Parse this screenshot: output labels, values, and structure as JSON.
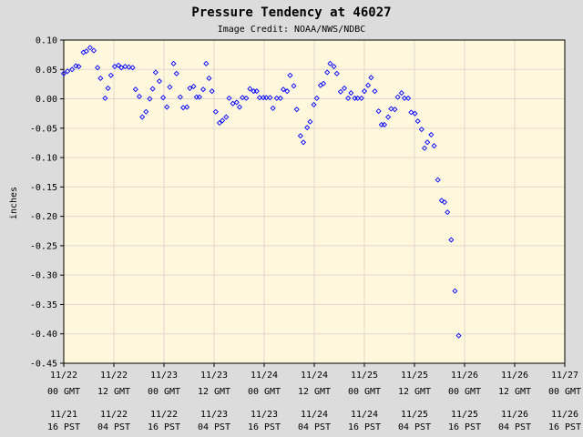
{
  "chart_data": {
    "type": "scatter",
    "title": "Pressure Tendency at 46027",
    "subtitle": "Image Credit: NOAA/NWS/NDBC",
    "ylabel": "inches",
    "xlabel": "",
    "ylim": [
      -0.45,
      0.1
    ],
    "y_ticks": [
      0.1,
      0.05,
      0.0,
      -0.05,
      -0.1,
      -0.15,
      -0.2,
      -0.25,
      -0.3,
      -0.35,
      -0.4,
      -0.45
    ],
    "y_tick_labels": [
      "0.10",
      "0.05",
      "0.00",
      "-0.05",
      "-0.10",
      "-0.15",
      "-0.20",
      "-0.25",
      "-0.30",
      "-0.35",
      "-0.40",
      "-0.45"
    ],
    "x_range_hours": [
      0,
      120
    ],
    "x_ticks": [
      {
        "hour": 0,
        "gmt_date": "11/22",
        "gmt_time": "00 GMT",
        "pst_date": "11/21",
        "pst_time": "16 PST"
      },
      {
        "hour": 12,
        "gmt_date": "11/22",
        "gmt_time": "12 GMT",
        "pst_date": "11/22",
        "pst_time": "04 PST"
      },
      {
        "hour": 24,
        "gmt_date": "11/23",
        "gmt_time": "00 GMT",
        "pst_date": "11/22",
        "pst_time": "16 PST"
      },
      {
        "hour": 36,
        "gmt_date": "11/23",
        "gmt_time": "12 GMT",
        "pst_date": "11/23",
        "pst_time": "04 PST"
      },
      {
        "hour": 48,
        "gmt_date": "11/24",
        "gmt_time": "00 GMT",
        "pst_date": "11/23",
        "pst_time": "16 PST"
      },
      {
        "hour": 60,
        "gmt_date": "11/24",
        "gmt_time": "12 GMT",
        "pst_date": "11/24",
        "pst_time": "04 PST"
      },
      {
        "hour": 72,
        "gmt_date": "11/25",
        "gmt_time": "00 GMT",
        "pst_date": "11/24",
        "pst_time": "16 PST"
      },
      {
        "hour": 84,
        "gmt_date": "11/25",
        "gmt_time": "12 GMT",
        "pst_date": "11/25",
        "pst_time": "04 PST"
      },
      {
        "hour": 96,
        "gmt_date": "11/26",
        "gmt_time": "00 GMT",
        "pst_date": "11/25",
        "pst_time": "16 PST"
      },
      {
        "hour": 108,
        "gmt_date": "11/26",
        "gmt_time": "12 GMT",
        "pst_date": "11/26",
        "pst_time": "04 PST"
      },
      {
        "hour": 120,
        "gmt_date": "11/27",
        "gmt_time": "00 GMT",
        "pst_date": "11/26",
        "pst_time": "16 PST"
      }
    ],
    "grid": true,
    "colors": {
      "background": "#dcdcdc",
      "plot": "#fff8dc",
      "grid": "#e0d8d0",
      "marker": "#0000ff"
    },
    "points": [
      [
        0.0,
        0.043
      ],
      [
        0.9,
        0.047
      ],
      [
        2.0,
        0.05
      ],
      [
        2.9,
        0.056
      ],
      [
        3.6,
        0.055
      ],
      [
        4.7,
        0.079
      ],
      [
        5.4,
        0.081
      ],
      [
        6.3,
        0.087
      ],
      [
        7.2,
        0.082
      ],
      [
        8.1,
        0.053
      ],
      [
        8.8,
        0.035
      ],
      [
        9.9,
        0.001
      ],
      [
        10.6,
        0.018
      ],
      [
        11.3,
        0.04
      ],
      [
        12.2,
        0.055
      ],
      [
        13.1,
        0.057
      ],
      [
        13.8,
        0.053
      ],
      [
        14.7,
        0.055
      ],
      [
        15.6,
        0.054
      ],
      [
        16.5,
        0.053
      ],
      [
        17.2,
        0.016
      ],
      [
        18.1,
        0.004
      ],
      [
        18.8,
        -0.031
      ],
      [
        19.7,
        -0.022
      ],
      [
        20.6,
        0.0
      ],
      [
        21.3,
        0.017
      ],
      [
        22.0,
        0.045
      ],
      [
        22.9,
        0.03
      ],
      [
        23.8,
        0.002
      ],
      [
        24.7,
        -0.014
      ],
      [
        25.4,
        0.02
      ],
      [
        26.3,
        0.06
      ],
      [
        27.0,
        0.043
      ],
      [
        27.9,
        0.003
      ],
      [
        28.6,
        -0.015
      ],
      [
        29.5,
        -0.014
      ],
      [
        30.2,
        0.018
      ],
      [
        31.1,
        0.021
      ],
      [
        31.8,
        0.003
      ],
      [
        32.5,
        0.003
      ],
      [
        33.4,
        0.016
      ],
      [
        34.1,
        0.06
      ],
      [
        34.8,
        0.035
      ],
      [
        35.5,
        0.013
      ],
      [
        36.4,
        -0.022
      ],
      [
        37.3,
        -0.041
      ],
      [
        38.0,
        -0.037
      ],
      [
        38.9,
        -0.031
      ],
      [
        39.6,
        0.001
      ],
      [
        40.5,
        -0.008
      ],
      [
        41.4,
        -0.006
      ],
      [
        42.1,
        -0.014
      ],
      [
        42.8,
        0.002
      ],
      [
        43.7,
        0.001
      ],
      [
        44.6,
        0.017
      ],
      [
        45.5,
        0.013
      ],
      [
        46.2,
        0.013
      ],
      [
        46.9,
        0.002
      ],
      [
        47.8,
        0.002
      ],
      [
        48.5,
        0.002
      ],
      [
        49.4,
        0.002
      ],
      [
        50.1,
        -0.016
      ],
      [
        51.0,
        0.001
      ],
      [
        51.9,
        0.001
      ],
      [
        52.6,
        0.016
      ],
      [
        53.5,
        0.013
      ],
      [
        54.2,
        0.04
      ],
      [
        55.1,
        0.022
      ],
      [
        55.8,
        -0.018
      ],
      [
        56.7,
        -0.063
      ],
      [
        57.4,
        -0.074
      ],
      [
        58.3,
        -0.049
      ],
      [
        59.0,
        -0.039
      ],
      [
        59.9,
        -0.01
      ],
      [
        60.6,
        0.001
      ],
      [
        61.5,
        0.023
      ],
      [
        62.2,
        0.026
      ],
      [
        63.1,
        0.045
      ],
      [
        63.8,
        0.06
      ],
      [
        64.7,
        0.055
      ],
      [
        65.4,
        0.043
      ],
      [
        66.3,
        0.012
      ],
      [
        67.2,
        0.018
      ],
      [
        68.1,
        0.001
      ],
      [
        68.8,
        0.01
      ],
      [
        69.7,
        0.001
      ],
      [
        70.4,
        0.001
      ],
      [
        71.3,
        0.001
      ],
      [
        72.0,
        0.013
      ],
      [
        72.9,
        0.023
      ],
      [
        73.6,
        0.036
      ],
      [
        74.5,
        0.013
      ],
      [
        75.4,
        -0.021
      ],
      [
        76.1,
        -0.044
      ],
      [
        76.8,
        -0.044
      ],
      [
        77.7,
        -0.031
      ],
      [
        78.4,
        -0.017
      ],
      [
        79.3,
        -0.018
      ],
      [
        80.0,
        0.003
      ],
      [
        80.9,
        0.01
      ],
      [
        81.6,
        0.001
      ],
      [
        82.5,
        0.001
      ],
      [
        83.2,
        -0.023
      ],
      [
        84.1,
        -0.025
      ],
      [
        84.8,
        -0.038
      ],
      [
        85.7,
        -0.052
      ],
      [
        86.4,
        -0.084
      ],
      [
        87.1,
        -0.074
      ],
      [
        88.0,
        -0.061
      ],
      [
        88.7,
        -0.08
      ],
      [
        89.6,
        -0.138
      ],
      [
        90.5,
        -0.173
      ],
      [
        91.2,
        -0.176
      ],
      [
        91.9,
        -0.193
      ],
      [
        92.8,
        -0.24
      ],
      [
        93.7,
        -0.327
      ],
      [
        94.6,
        -0.403
      ]
    ]
  }
}
